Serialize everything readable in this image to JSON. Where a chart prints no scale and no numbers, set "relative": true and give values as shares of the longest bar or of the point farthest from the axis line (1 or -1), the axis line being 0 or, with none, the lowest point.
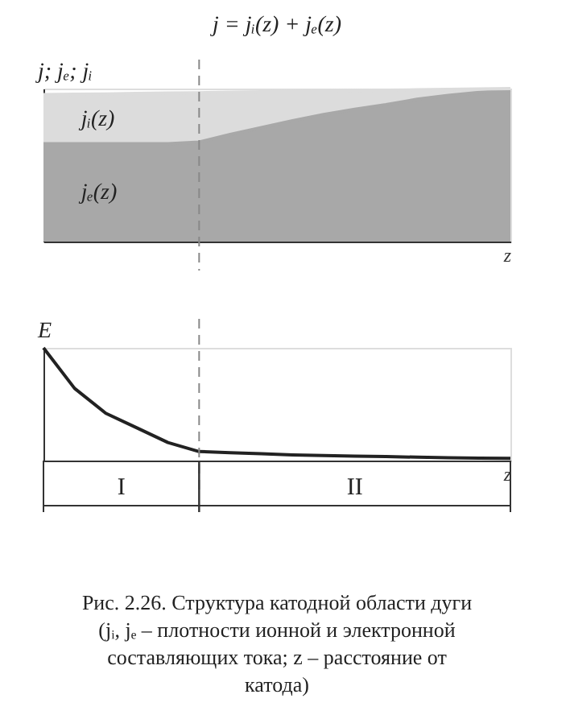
{
  "chart_data": [
    {
      "type": "area",
      "title": "j = jᵢ(z) + jₑ(z)",
      "ylabel": "j; jₑ; jᵢ",
      "xlabel": "z",
      "relative": true,
      "stacked": true,
      "tick_labels": false,
      "categories": [
        null,
        null,
        null,
        null,
        null,
        null,
        null,
        null,
        null,
        null,
        null,
        null,
        null,
        null,
        null,
        null
      ],
      "series": [
        {
          "name": "jₑ(z)",
          "color": "#a8a8a8",
          "values": [
            0.64,
            0.64,
            0.64,
            0.64,
            0.64,
            0.65,
            0.7,
            0.745,
            0.79,
            0.83,
            0.865,
            0.895,
            0.93,
            0.955,
            0.975,
            0.99
          ]
        },
        {
          "name": "jᵢ(z)",
          "color": "#dcdcdc",
          "values": [
            0.32,
            0.323,
            0.325,
            0.328,
            0.331,
            0.323,
            0.276,
            0.234,
            0.191,
            0.154,
            0.122,
            0.094,
            0.062,
            0.04,
            0.022,
            0.01
          ]
        }
      ]
    },
    {
      "type": "line",
      "ylabel": "E",
      "xlabel": "z",
      "relative": true,
      "tick_labels": false,
      "marker": "none",
      "line_style": "solid",
      "categories": [
        null,
        null,
        null,
        null,
        null,
        null,
        null,
        null,
        null,
        null,
        null,
        null,
        null,
        null,
        null,
        null
      ],
      "series": [
        {
          "color": "#222222",
          "values": [
            1,
            0.64,
            0.42,
            0.29,
            0.16,
            0.08,
            0.07,
            0.06,
            0.05,
            0.045,
            0.04,
            0.035,
            0.03,
            0.025,
            0.022,
            0.02
          ]
        }
      ],
      "annotations": [
        "I",
        "II",
        "Рис. 2.26. Структура катодной области дуги (jᵢ, jₑ – плотности ионной и электронной составляющих тока; z – расстояние от катода)"
      ]
    }
  ]
}
